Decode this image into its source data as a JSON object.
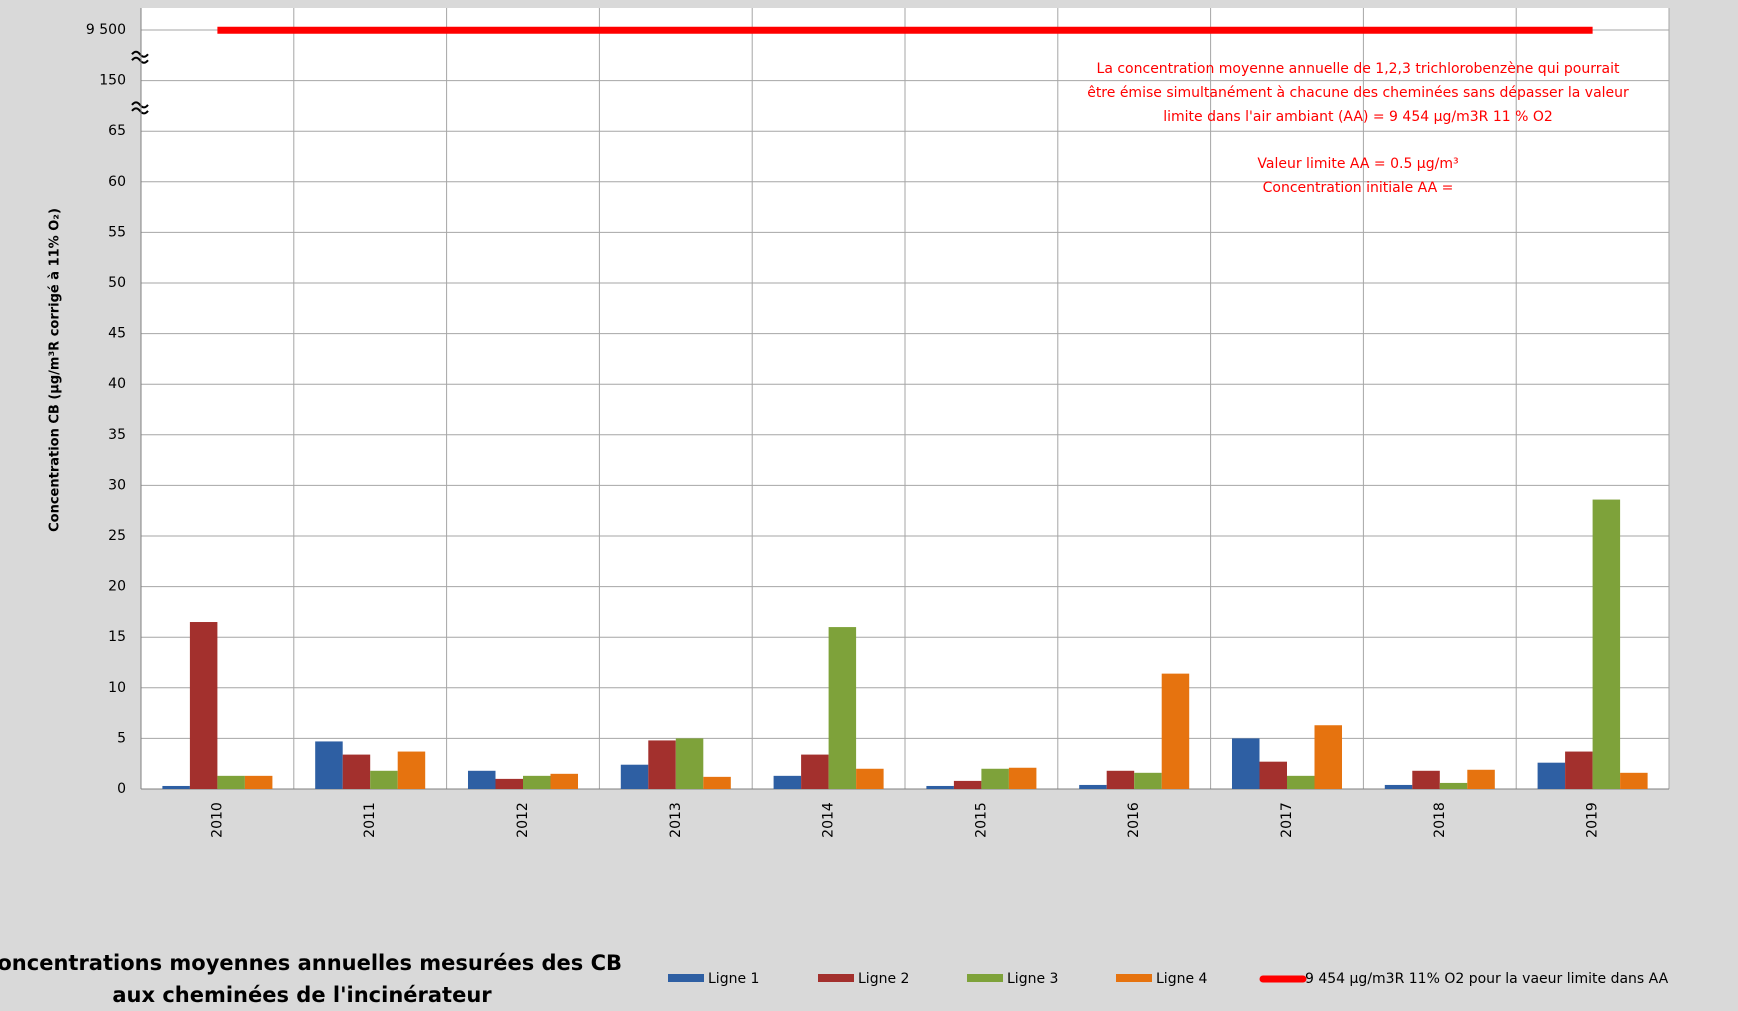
{
  "chart_data": {
    "type": "bar",
    "title": [
      "Concentrations moyennes annuelles mesurées des CB",
      "aux cheminées de l'incinérateur"
    ],
    "y_label": "Concentration CB (µg/m³R corrigé à 11% O₂)",
    "categories": [
      "2010",
      "2011",
      "2012",
      "2013",
      "2014",
      "2015",
      "2016",
      "2017",
      "2018",
      "2019"
    ],
    "series": [
      {
        "name": "Ligne 1",
        "color": "#2e5fa3",
        "values": [
          0.3,
          4.7,
          1.8,
          2.4,
          1.3,
          0.3,
          0.4,
          5.0,
          0.4,
          2.6
        ]
      },
      {
        "name": "Ligne 2",
        "color": "#a3302d",
        "values": [
          16.5,
          3.4,
          1.0,
          4.8,
          3.4,
          0.8,
          1.8,
          2.7,
          1.8,
          3.7
        ]
      },
      {
        "name": "Ligne 3",
        "color": "#7ea23a",
        "values": [
          1.3,
          1.8,
          1.3,
          5.0,
          16.0,
          2.0,
          1.6,
          1.3,
          0.6,
          28.6
        ]
      },
      {
        "name": "Ligne 4",
        "color": "#e6730f",
        "values": [
          1.3,
          3.7,
          1.5,
          1.2,
          2.0,
          2.1,
          11.4,
          6.3,
          1.9,
          1.6
        ]
      }
    ],
    "limit_line": {
      "name": "9 454 µg/m3R 11% O2 pour la vaeur limite dans AA",
      "value": 9454,
      "color": "#ff0000"
    },
    "annotations": [
      [
        "La concentration moyenne annuelle de 1,2,3 trichlorobenzène qui pourrait",
        "être émise simultanément à chacune des cheminées sans dépasser la valeur",
        "limite dans l'air ambiant (AA) = 9 454 µg/m3R 11 % O2"
      ],
      [
        "Valeur limite AA = 0.5 µg/m³",
        "Concentration initiale AA ="
      ]
    ],
    "ylim": [
      0,
      9500
    ],
    "yticks": [
      0,
      5,
      10,
      15,
      20,
      25,
      30,
      35,
      40,
      45,
      50,
      55,
      60,
      65,
      150,
      {
        "value": 9500,
        "label": "9 500"
      }
    ],
    "axis_break": true,
    "grid": true
  }
}
